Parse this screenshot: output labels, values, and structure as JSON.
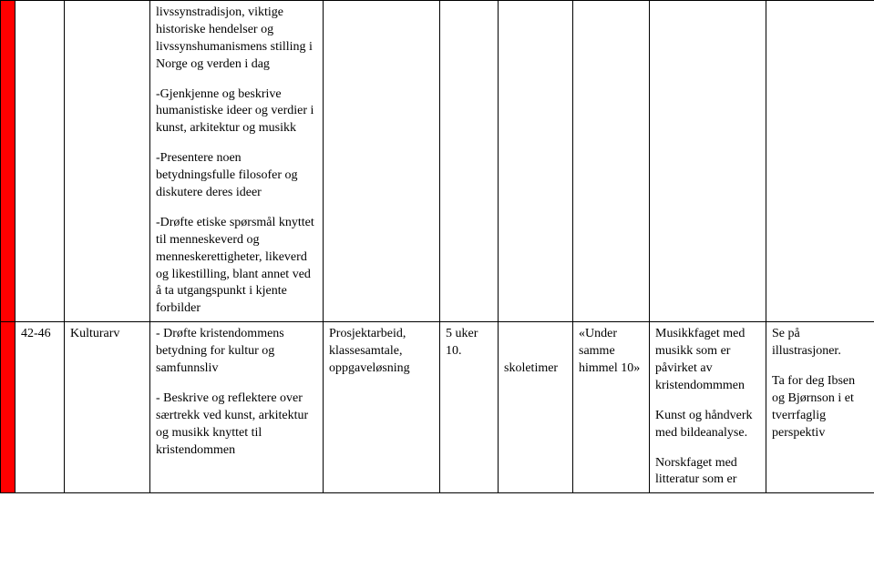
{
  "row1": {
    "desc_p1": "livssynstradisjon, viktige historiske hendelser og livssynshumanismens stilling i Norge og verden i dag",
    "desc_p2": "-Gjenkjenne og beskrive humanistiske ideer og verdier i kunst, arkitektur og musikk",
    "desc_p3": "-Presentere noen betydningsfulle filosofer og diskutere deres ideer",
    "desc_p4": "-Drøfte etiske spørsmål knyttet til menneskeverd og menneskerettigheter, likeverd og likestilling, blant annet ved å ta utgangspunkt i kjente forbilder"
  },
  "row2": {
    "weeks": "42-46",
    "topic": "Kulturarv",
    "desc_p1": "- Drøfte kristendommens betydning for kultur og samfunnsliv",
    "desc_p2": "- Beskrive og reflektere over særtrekk ved kunst, arkitektur og musikk knyttet til kristendommen",
    "col4": "Prosjektarbeid, klassesamtale, oppgaveløsning",
    "col5_l1": "5 uker",
    "col5_l2": "10.",
    "col6": "skoletimer",
    "col7_l1": "«Under samme himmel 10»",
    "col8_p1": "Musikkfaget med musikk som er påvirket av kristendommmen",
    "col8_p2": "Kunst og håndverk med bildeanalyse.",
    "col8_p3": "Norskfaget med litteratur som er",
    "col9_p1": "Se på illustrasjoner.",
    "col9_p2": "Ta for deg Ibsen og Bjørnson i et tverrfaglig perspektiv"
  }
}
